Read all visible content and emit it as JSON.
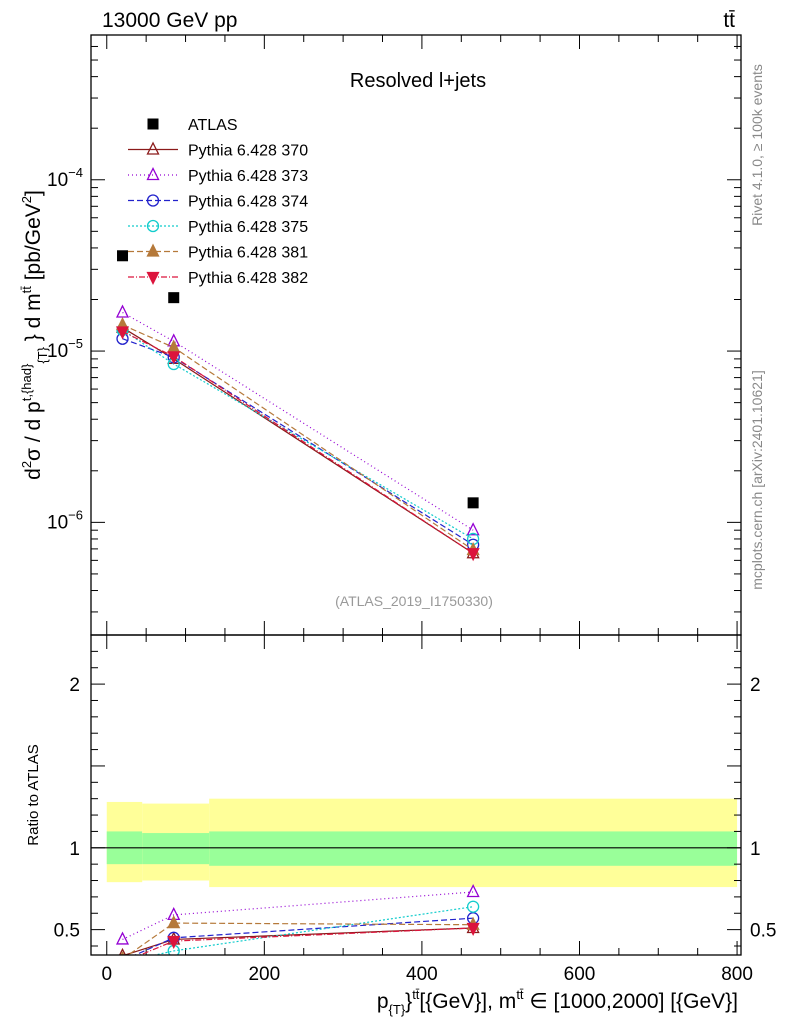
{
  "header": {
    "left": "13000 GeV pp",
    "right": "tt̄"
  },
  "side_labels": {
    "rivet": "Rivet 4.1.0, ≥ 100k events",
    "mcplots": "mcplots.cern.ch [arXiv:2401.10621]"
  },
  "chart_data": [
    {
      "type": "scatter",
      "title": "Resolved l+jets",
      "watermark": "(ATLAS_2019_I1750330)",
      "xlabel": "p_{T}^{tt̄} [GeV], m^{tt̄} ∈ [1000,2000] [GeV]",
      "ylabel": "d²σ / d p_T^{t,had} d m^{tt̄} [pb/GeV²]",
      "yscale": "log",
      "xlim": [
        -20,
        805
      ],
      "ylim": [
        2.2e-07,
        0.0007
      ],
      "yticks": [
        {
          "value": 1e-06,
          "base": "10",
          "exp": "−6"
        },
        {
          "value": 1e-05,
          "base": "10",
          "exp": "−5"
        },
        {
          "value": 0.0001,
          "base": "10",
          "exp": "−4"
        }
      ],
      "series": [
        {
          "name": "ATLAS",
          "color": "#000000",
          "marker": "square-filled",
          "dash": "none",
          "x": [
            20,
            85,
            465
          ],
          "y": [
            3.6e-05,
            2.05e-05,
            1.3e-06
          ]
        },
        {
          "name": "Pythia 6.428 370",
          "color": "#8b1a1a",
          "marker": "triangle-open",
          "dash": "solid",
          "x": [
            20,
            85,
            465
          ],
          "y": [
            1.37e-05,
            9e-06,
            6.6e-07
          ]
        },
        {
          "name": "Pythia 6.428 373",
          "color": "#9400d3",
          "marker": "triangle-open",
          "dash": "1,3",
          "x": [
            20,
            85,
            465
          ],
          "y": [
            1.68e-05,
            1.14e-05,
            9e-07
          ]
        },
        {
          "name": "Pythia 6.428 374",
          "color": "#2222cc",
          "marker": "circle-open",
          "dash": "6,3",
          "x": [
            20,
            85,
            465
          ],
          "y": [
            1.18e-05,
            9.2e-06,
            7.4e-07
          ]
        },
        {
          "name": "Pythia 6.428 375",
          "color": "#11cccc",
          "marker": "circle-open",
          "dash": "2,2",
          "x": [
            20,
            85,
            465
          ],
          "y": [
            1.33e-05,
            8.4e-06,
            8e-07
          ]
        },
        {
          "name": "Pythia 6.428 381",
          "color": "#b5793a",
          "marker": "triangle-filled",
          "dash": "6,3",
          "x": [
            20,
            85,
            465
          ],
          "y": [
            1.42e-05,
            1.05e-05,
            6.9e-07
          ]
        },
        {
          "name": "Pythia 6.428 382",
          "color": "#dc143c",
          "marker": "triangle-down-filled",
          "dash": "6,2,1,2",
          "x": [
            20,
            85,
            465
          ],
          "y": [
            1.3e-05,
            9.3e-06,
            6.6e-07
          ]
        }
      ]
    },
    {
      "type": "line",
      "ylabel": "Ratio to ATLAS",
      "xlim": [
        -20,
        805
      ],
      "ylim": [
        0.345,
        2.3
      ],
      "xticks": [
        0,
        200,
        400,
        600,
        800
      ],
      "yticks": [
        0.5,
        1,
        2
      ],
      "bands": {
        "edges": [
          0,
          45,
          130,
          800
        ],
        "outer_lo": [
          0.79,
          0.8,
          0.76
        ],
        "outer_hi": [
          1.28,
          1.27,
          1.3
        ],
        "inner_lo": [
          0.9,
          0.9,
          0.89
        ],
        "inner_hi": [
          1.1,
          1.09,
          1.1
        ],
        "outer_color": "#ffff99",
        "inner_color": "#99ff99"
      },
      "series": [
        {
          "name": "Pythia 6.428 370",
          "x": [
            20,
            85,
            465
          ],
          "y": [
            0.34,
            0.44,
            0.51
          ]
        },
        {
          "name": "Pythia 6.428 373",
          "x": [
            20,
            85,
            465
          ],
          "y": [
            0.44,
            0.59,
            0.73
          ]
        },
        {
          "name": "Pythia 6.428 374",
          "x": [
            20,
            85,
            465
          ],
          "y": [
            0.31,
            0.45,
            0.57
          ]
        },
        {
          "name": "Pythia 6.428 375",
          "x": [
            20,
            85,
            465
          ],
          "y": [
            0.3,
            0.37,
            0.64
          ]
        },
        {
          "name": "Pythia 6.428 381",
          "x": [
            20,
            85,
            465
          ],
          "y": [
            0.32,
            0.54,
            0.53
          ]
        },
        {
          "name": "Pythia 6.428 382",
          "x": [
            20,
            85,
            465
          ],
          "y": [
            0.3,
            0.43,
            0.51
          ]
        }
      ]
    }
  ]
}
